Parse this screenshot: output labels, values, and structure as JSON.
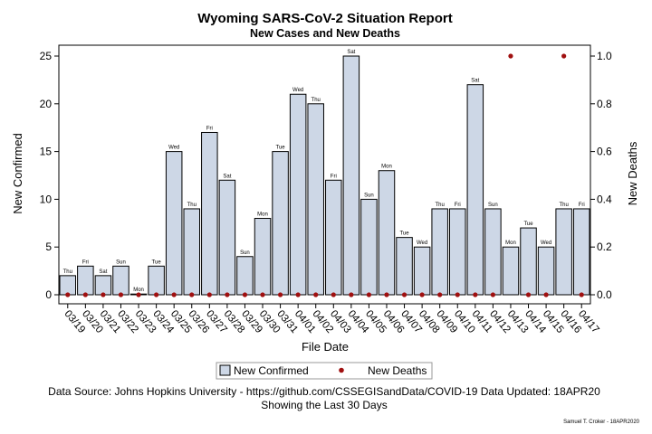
{
  "chart_data": {
    "type": "bar",
    "title": "Wyoming SARS-CoV-2 Situation Report",
    "subtitle": "New Cases and New Deaths",
    "xlabel": "File Date",
    "ylabel": "New Confirmed",
    "y2label": "New Deaths",
    "ylim": [
      0,
      25
    ],
    "y2lim": [
      0,
      1
    ],
    "yticks": [
      0,
      5,
      10,
      15,
      20,
      25
    ],
    "y2ticks": [
      "0.0",
      "0.2",
      "0.4",
      "0.6",
      "0.8",
      "1.0"
    ],
    "categories": [
      "03/19",
      "03/20",
      "03/21",
      "03/22",
      "03/23",
      "03/24",
      "03/25",
      "03/26",
      "03/27",
      "03/28",
      "03/29",
      "03/30",
      "03/31",
      "04/01",
      "04/02",
      "04/03",
      "04/04",
      "04/05",
      "04/06",
      "04/07",
      "04/08",
      "04/09",
      "04/10",
      "04/11",
      "04/12",
      "04/13",
      "04/14",
      "04/15",
      "04/16",
      "04/17"
    ],
    "day_labels": [
      "Thu",
      "Fri",
      "Sat",
      "Sun",
      "Mon",
      "Tue",
      "Wed",
      "Thu",
      "Fri",
      "Sat",
      "Sun",
      "Mon",
      "Tue",
      "Wed",
      "Thu",
      "Fri",
      "Sat",
      "Sun",
      "Mon",
      "Tue",
      "Wed",
      "Thu",
      "Fri",
      "Sat",
      "Sun",
      "Mon",
      "Tue",
      "Wed",
      "Thu",
      "Fri"
    ],
    "series": [
      {
        "name": "New Confirmed",
        "kind": "bar",
        "axis": "left",
        "color": "#cdd7e6",
        "values": [
          2,
          3,
          2,
          3,
          0,
          3,
          15,
          9,
          17,
          12,
          4,
          8,
          15,
          21,
          20,
          12,
          25,
          10,
          13,
          6,
          5,
          9,
          9,
          22,
          9,
          5,
          7,
          5,
          9,
          9
        ]
      },
      {
        "name": "New Deaths",
        "kind": "scatter",
        "axis": "right",
        "color": "#a01010",
        "values": [
          0,
          0,
          0,
          0,
          0,
          0,
          0,
          0,
          0,
          0,
          0,
          0,
          0,
          0,
          0,
          0,
          0,
          0,
          0,
          0,
          0,
          0,
          0,
          0,
          0,
          1,
          0,
          0,
          1,
          0
        ]
      }
    ],
    "legend_position": "bottom",
    "grid": false
  },
  "footer": {
    "source": "Data Source: Johns Hopkins University - https://github.com/CSSEGISandData/COVID-19 Data Updated: 18APR20",
    "note": "Showing the Last 30 Days",
    "credit": "Samuel T. Croker - 18APR2020"
  }
}
